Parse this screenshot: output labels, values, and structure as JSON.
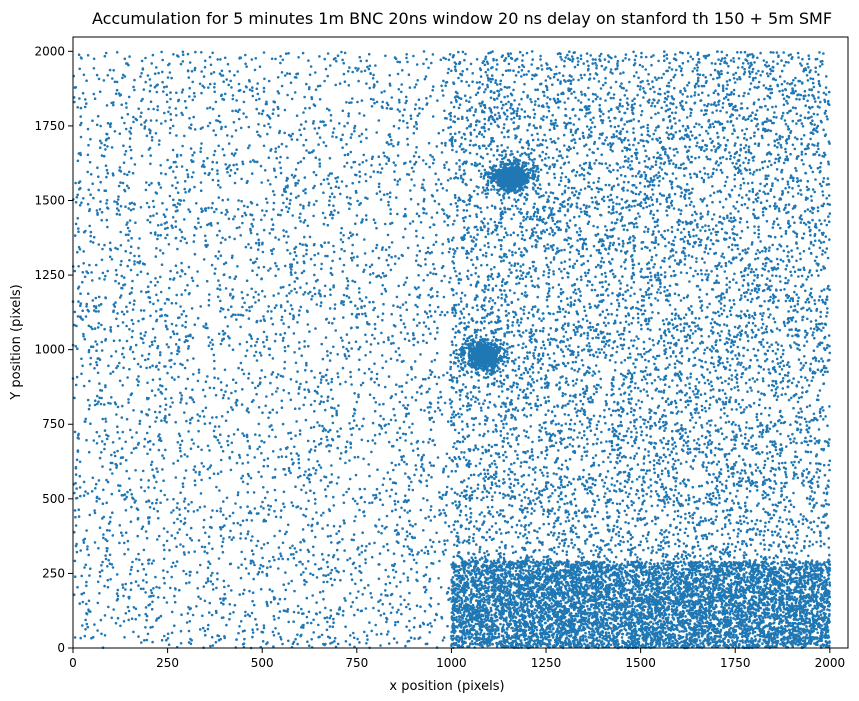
{
  "chart_data": {
    "type": "scatter",
    "title": "Accumulation for 5 minutes 1m BNC 20ns window 20 ns delay on stanford th 150 + 5m SMF",
    "xlabel": "x position (pixels)",
    "ylabel": "Y position (pixels)",
    "xlim": [
      0,
      2048
    ],
    "ylim": [
      0,
      2048
    ],
    "xticks": [
      0,
      250,
      500,
      750,
      1000,
      1250,
      1500,
      1750,
      2000
    ],
    "yticks": [
      0,
      250,
      500,
      750,
      1000,
      1250,
      1500,
      1750,
      2000
    ],
    "grid": false,
    "legend": "none",
    "point_color": "#1f77b4",
    "regions": [
      {
        "name": "left half background",
        "x_range": [
          0,
          1000
        ],
        "y_range": [
          0,
          2000
        ],
        "density": "sparse"
      },
      {
        "name": "right half background",
        "x_range": [
          1000,
          2000
        ],
        "y_range": [
          0,
          2000
        ],
        "density": "medium"
      },
      {
        "name": "bottom band",
        "x_range": [
          1000,
          2000
        ],
        "y_range": [
          0,
          290
        ],
        "density": "very dense"
      }
    ],
    "clusters": [
      {
        "x": 1160,
        "y": 1580,
        "radius": 45
      },
      {
        "x": 1085,
        "y": 980,
        "radius": 45
      }
    ]
  }
}
